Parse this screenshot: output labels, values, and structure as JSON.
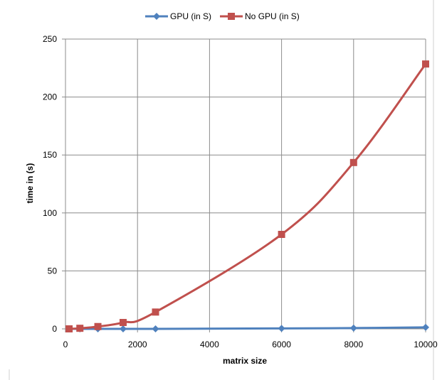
{
  "chart_data": {
    "type": "line",
    "title": "",
    "xlabel": "matrix size",
    "ylabel": "time in (s)",
    "xlim": [
      0,
      10000
    ],
    "ylim": [
      0,
      250
    ],
    "x_ticks": [
      "0",
      "2000",
      "4000",
      "6000",
      "8000",
      "10000"
    ],
    "y_ticks": [
      "0",
      "50",
      "100",
      "150",
      "200",
      "250"
    ],
    "grid": true,
    "legend_position": "top",
    "x": [
      100,
      400,
      900,
      1600,
      2500,
      6000,
      8000,
      10000
    ],
    "series": [
      {
        "name": "GPU (in S)",
        "color": "#4f81bd",
        "marker": "diamond",
        "values": [
          0,
          0,
          0,
          0,
          0,
          0.4,
          0.7,
          1.3
        ]
      },
      {
        "name": "No GPU (in S)",
        "color": "#c0504d",
        "marker": "square",
        "values": [
          0,
          0.5,
          2,
          5.5,
          14.5,
          81.5,
          143.5,
          228.5
        ]
      }
    ]
  }
}
